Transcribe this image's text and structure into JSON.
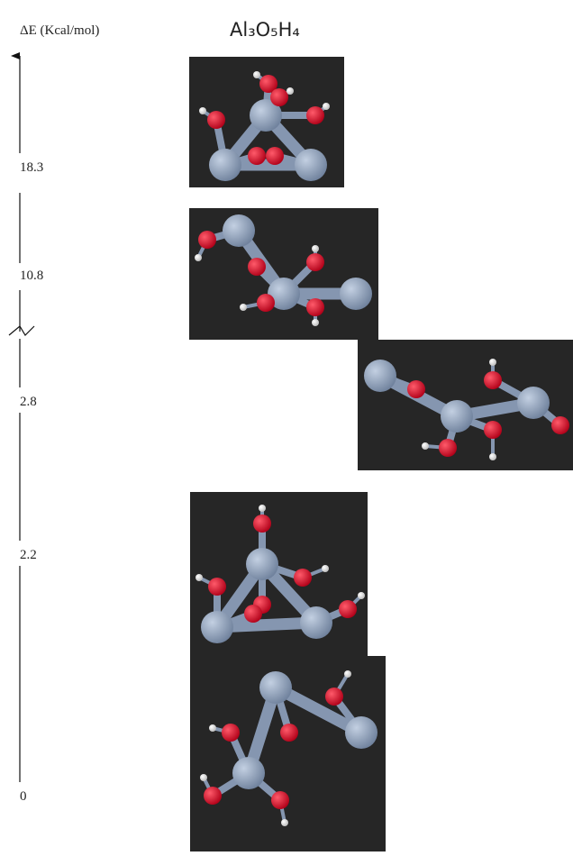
{
  "header": {
    "axis_label": "ΔE (Kcal/mol)",
    "formula": "Al₃O₅H₄"
  },
  "levels": [
    "18.3",
    "10.8",
    "2.8",
    "2.2",
    "0"
  ]
}
